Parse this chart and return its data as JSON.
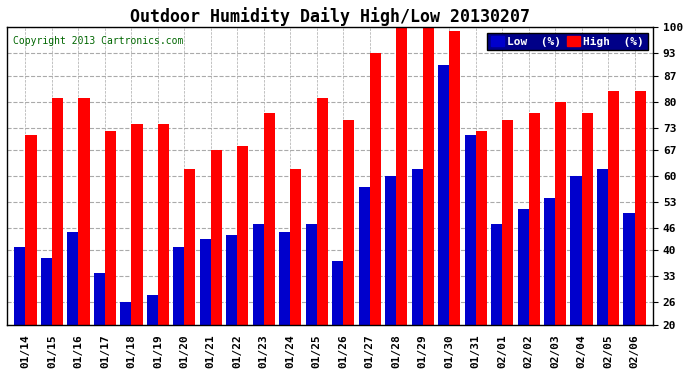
{
  "title": "Outdoor Humidity Daily High/Low 20130207",
  "copyright": "Copyright 2013 Cartronics.com",
  "dates": [
    "01/14",
    "01/15",
    "01/16",
    "01/17",
    "01/18",
    "01/19",
    "01/20",
    "01/21",
    "01/22",
    "01/23",
    "01/24",
    "01/25",
    "01/26",
    "01/27",
    "01/28",
    "01/29",
    "01/30",
    "01/31",
    "02/01",
    "02/02",
    "02/03",
    "02/04",
    "02/05",
    "02/06"
  ],
  "high": [
    71,
    81,
    81,
    72,
    74,
    74,
    62,
    67,
    68,
    77,
    62,
    81,
    75,
    93,
    100,
    100,
    99,
    72,
    75,
    77,
    80,
    77,
    83,
    83
  ],
  "low": [
    41,
    38,
    45,
    34,
    26,
    28,
    41,
    43,
    44,
    47,
    45,
    47,
    37,
    57,
    60,
    62,
    90,
    71,
    47,
    51,
    54,
    60,
    62,
    50
  ],
  "bar_color_high": "#ff0000",
  "bar_color_low": "#0000cc",
  "bg_color": "#ffffff",
  "plot_bg_color": "#ffffff",
  "grid_color": "#aaaaaa",
  "ylim_min": 20,
  "ylim_max": 100,
  "yticks": [
    20,
    26,
    33,
    40,
    46,
    53,
    60,
    67,
    73,
    80,
    87,
    93,
    100
  ],
  "legend_low_label": "Low  (%)",
  "legend_high_label": "High  (%)",
  "title_fontsize": 12,
  "copyright_fontsize": 7,
  "tick_fontsize": 8,
  "bar_width": 0.42
}
